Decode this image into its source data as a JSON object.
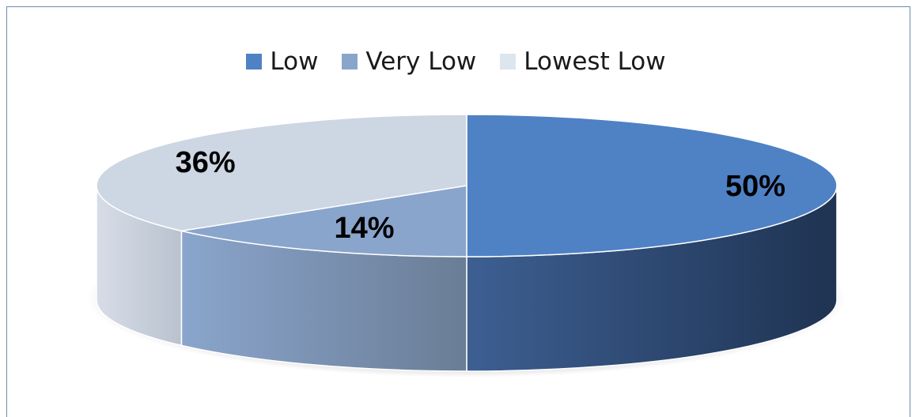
{
  "chart_data": {
    "type": "pie",
    "categories": [
      "Low",
      "Very Low",
      "Lowest Low"
    ],
    "values": [
      50,
      14,
      36
    ],
    "labels": [
      "50%",
      "14%",
      "36%"
    ],
    "title": "",
    "legend_position": "top",
    "colors": [
      "#4f81c5",
      "#8aa5cc",
      "#cdd6e3"
    ]
  }
}
